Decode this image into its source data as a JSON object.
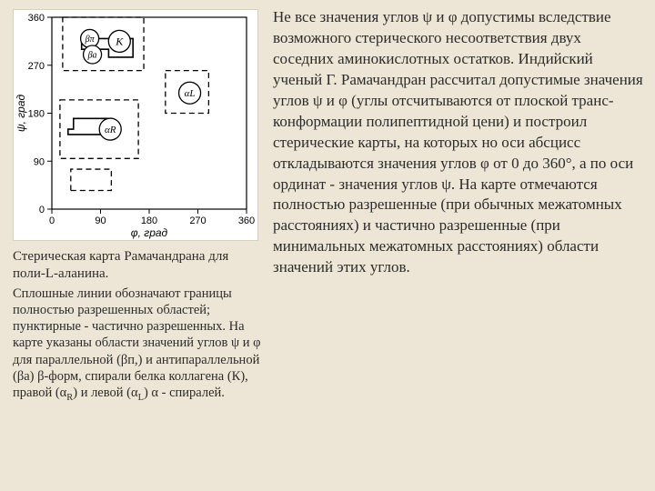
{
  "figure": {
    "type": "scatter-region-map",
    "background_color": "#ffffff",
    "axis": {
      "xlabel": "φ, град",
      "ylabel": "ψ, град",
      "xlim": [
        0,
        360
      ],
      "ylim": [
        0,
        360
      ],
      "xticks": [
        0,
        90,
        180,
        270,
        360
      ],
      "yticks": [
        0,
        90,
        180,
        270,
        360
      ],
      "tick_fontsize": 11,
      "label_fontsize": 12,
      "line_color": "#000000"
    },
    "regions_solid": [
      {
        "points": [
          [
            55,
            300
          ],
          [
            105,
            300
          ],
          [
            105,
            285
          ],
          [
            150,
            285
          ],
          [
            150,
            320
          ],
          [
            55,
            320
          ]
        ]
      },
      {
        "points": [
          [
            30,
            140
          ],
          [
            110,
            140
          ],
          [
            110,
            170
          ],
          [
            40,
            170
          ],
          [
            40,
            150
          ],
          [
            30,
            150
          ]
        ]
      }
    ],
    "regions_dashed": [
      {
        "points": [
          [
            20,
            360
          ],
          [
            170,
            360
          ],
          [
            170,
            260
          ],
          [
            20,
            260
          ]
        ]
      },
      {
        "points": [
          [
            15,
            205
          ],
          [
            160,
            205
          ],
          [
            160,
            95
          ],
          [
            15,
            95
          ]
        ]
      },
      {
        "points": [
          [
            210,
            260
          ],
          [
            290,
            260
          ],
          [
            290,
            180
          ],
          [
            210,
            180
          ]
        ]
      },
      {
        "points": [
          [
            35,
            35
          ],
          [
            110,
            35
          ],
          [
            110,
            75
          ],
          [
            35,
            75
          ]
        ]
      }
    ],
    "markers": [
      {
        "label": "βπ",
        "x": 70,
        "y": 320,
        "r": 10,
        "fill": "#ffffff",
        "stroke": "#000000",
        "fontsize": 10
      },
      {
        "label": "βa",
        "x": 75,
        "y": 290,
        "r": 10,
        "fill": "#ffffff",
        "stroke": "#000000",
        "fontsize": 10
      },
      {
        "label": "K",
        "x": 125,
        "y": 315,
        "r": 12,
        "fill": "#ffffff",
        "stroke": "#000000",
        "fontsize": 12
      },
      {
        "label": "αL",
        "x": 255,
        "y": 218,
        "r": 12,
        "fill": "#ffffff",
        "stroke": "#000000",
        "fontsize": 11
      },
      {
        "label": "αR",
        "x": 108,
        "y": 150,
        "r": 12,
        "fill": "#ffffff",
        "stroke": "#000000",
        "fontsize": 11
      }
    ],
    "dash_pattern": "6,4",
    "stroke_width_solid": 1.6,
    "stroke_width_dashed": 1.3
  },
  "caption": "Стерическая карта Рамачандрана для поли-L-аланина.",
  "legend_html": "Сплошные линии обозначают границы полностью разрешенных областей; пунктирные - частично разрешенных. На карте указаны области значений углов ψ и φ  для параллельной (βп,) и антипараллельной (βa) β-форм, спирали белка коллагена (К), правой (α<span class=\"sub\">R</span>) и левой (α<span class=\"sub\">L</span>) α - спиралей.",
  "maintext": "Не все значения углов  ψ и φ допустимы вследствие возможного стерического несоответствия двух соседних  аминокислотных остатков. Индийский ученый Г. Рамачандран рассчитал допустимые значения углов ψ и φ (углы отсчитываются от плоской транс-конформации полипептидной цени) и построил стерические карты, на которых но оси абсцисс откладываются значения углов φ от 0 до 360°, а по оси ординат - значения углов ψ. На карте отмечаются полностью разрешенные (при обычных межатомных расстояниях) и частично разрешенные (при минимальных межатомных расстояниях) области значений этих углов."
}
